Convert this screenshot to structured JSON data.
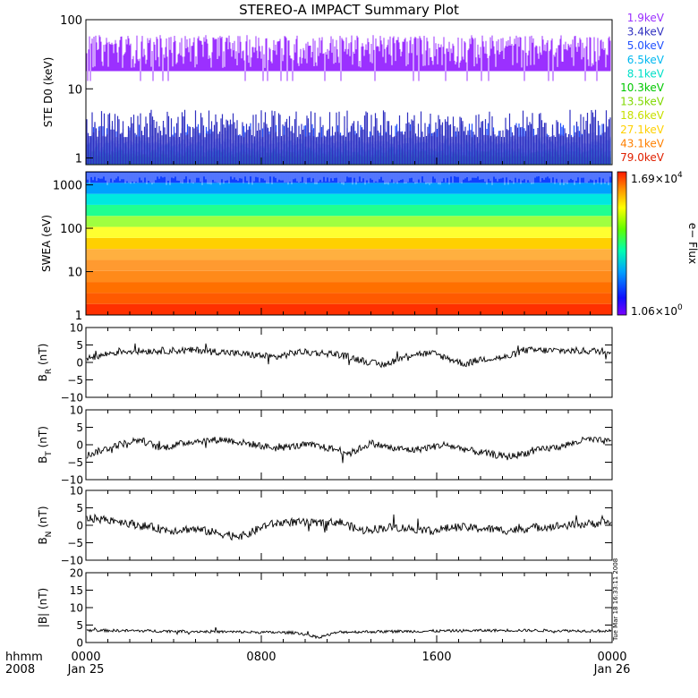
{
  "chart_data": [
    {
      "type": "line",
      "title": "STEREO-A IMPACT Summary Plot",
      "ylabel": "STE D0 (keV)",
      "yscale": "log",
      "ylim": [
        0.8,
        100
      ],
      "yticks": [
        "1",
        "10",
        "100"
      ],
      "series": [
        {
          "name": "1.9keV",
          "color": "#9b30ff",
          "level_range": [
            20,
            60
          ]
        },
        {
          "name": "3.4keV",
          "color": "#3030c0",
          "level_range": [
            2.0,
            5.0
          ]
        },
        {
          "name": "5.0keV",
          "color": "#2050ff",
          "level_range": [
            1.6,
            3.2
          ]
        },
        {
          "name": "6.5keV",
          "color": "#00b8f0",
          "level_range": [
            1.2,
            2.0
          ]
        },
        {
          "name": "8.1keV",
          "color": "#00e0c8",
          "level_range": [
            1.0,
            1.6
          ]
        },
        {
          "name": "10.3keV",
          "color": "#00c800",
          "level_range": [
            1.0,
            1.4
          ]
        },
        {
          "name": "13.5keV",
          "color": "#80d800",
          "level_range": [
            1.0,
            1.3
          ]
        },
        {
          "name": "18.6keV",
          "color": "#c8e000",
          "level_range": [
            1.0,
            1.2
          ]
        },
        {
          "name": "27.1keV",
          "color": "#ffd000",
          "level_range": [
            1.0,
            1.15
          ]
        },
        {
          "name": "43.1keV",
          "color": "#ff8000",
          "level_range": [
            1.0,
            1.1
          ]
        },
        {
          "name": "79.0keV",
          "color": "#e02000",
          "level_range": [
            1.0,
            1.05
          ]
        }
      ]
    },
    {
      "type": "heatmap",
      "ylabel": "SWEA (eV)",
      "yscale": "log",
      "ylim": [
        1,
        2000
      ],
      "yticks": [
        "1",
        "10",
        "100",
        "1000"
      ],
      "colorbar_label": "e− Flux",
      "colorbar_max_mantissa": "1.69×10",
      "colorbar_max_exp": "4",
      "colorbar_min_mantissa": "1.06×10",
      "colorbar_min_exp": "0"
    },
    {
      "type": "line",
      "ylabel_main": "B",
      "ylabel_sub": "R",
      "ylabel_unit": " (nT)",
      "ylim": [
        -10,
        10
      ],
      "yticks": [
        "10",
        "5",
        "0",
        "−5",
        "−10"
      ],
      "profile": [
        [
          0,
          1.0
        ],
        [
          0.06,
          3.2
        ],
        [
          0.22,
          3.5
        ],
        [
          0.36,
          1.5
        ],
        [
          0.4,
          3.0
        ],
        [
          0.47,
          2.5
        ],
        [
          0.5,
          1.5
        ],
        [
          0.56,
          -0.8
        ],
        [
          0.62,
          2.5
        ],
        [
          0.66,
          2.5
        ],
        [
          0.72,
          -0.5
        ],
        [
          0.75,
          1.0
        ],
        [
          0.8,
          1.5
        ],
        [
          0.83,
          3.5
        ],
        [
          1,
          3.2
        ]
      ]
    },
    {
      "type": "line",
      "ylabel_main": "B",
      "ylabel_sub": "T",
      "ylabel_unit": " (nT)",
      "ylim": [
        -10,
        10
      ],
      "yticks": [
        "10",
        "5",
        "0",
        "−5",
        "−10"
      ],
      "profile": [
        [
          0,
          -3.0
        ],
        [
          0.06,
          0.0
        ],
        [
          0.1,
          1.5
        ],
        [
          0.14,
          -1.0
        ],
        [
          0.2,
          1.0
        ],
        [
          0.26,
          1.5
        ],
        [
          0.3,
          0.5
        ],
        [
          0.36,
          -1.0
        ],
        [
          0.42,
          0.0
        ],
        [
          0.48,
          -1.5
        ],
        [
          0.5,
          -2.5
        ],
        [
          0.54,
          0.5
        ],
        [
          0.58,
          -1.0
        ],
        [
          0.62,
          -1.5
        ],
        [
          0.68,
          0.0
        ],
        [
          0.74,
          -2.0
        ],
        [
          0.8,
          -3.5
        ],
        [
          0.86,
          -1.5
        ],
        [
          0.9,
          -0.5
        ],
        [
          0.95,
          1.5
        ],
        [
          1,
          0.8
        ]
      ]
    },
    {
      "type": "line",
      "ylabel_main": "B",
      "ylabel_sub": "N",
      "ylabel_unit": " (nT)",
      "ylim": [
        -10,
        10
      ],
      "yticks": [
        "10",
        "5",
        "0",
        "−5",
        "−10"
      ],
      "profile": [
        [
          0,
          2.0
        ],
        [
          0.05,
          1.5
        ],
        [
          0.1,
          0.0
        ],
        [
          0.16,
          -1.5
        ],
        [
          0.2,
          -1.0
        ],
        [
          0.26,
          -2.5
        ],
        [
          0.3,
          -3.0
        ],
        [
          0.34,
          0.0
        ],
        [
          0.38,
          1.0
        ],
        [
          0.44,
          0.5
        ],
        [
          0.48,
          1.0
        ],
        [
          0.52,
          -1.5
        ],
        [
          0.58,
          -0.5
        ],
        [
          0.62,
          -1.0
        ],
        [
          0.66,
          -1.5
        ],
        [
          0.7,
          -0.5
        ],
        [
          0.76,
          -1.0
        ],
        [
          0.8,
          -1.5
        ],
        [
          0.86,
          -0.5
        ],
        [
          0.92,
          0.0
        ],
        [
          1,
          1.0
        ]
      ]
    },
    {
      "type": "line",
      "ylabel": "|B| (nT)",
      "ylim": [
        0,
        20
      ],
      "yticks": [
        "20",
        "15",
        "10",
        "5",
        "0"
      ],
      "side_text": "Tue Mar 18 16:33:11 2008",
      "profile": [
        [
          0,
          3.5
        ],
        [
          0.2,
          3.2
        ],
        [
          0.3,
          3.0
        ],
        [
          0.4,
          2.8
        ],
        [
          0.44,
          1.5
        ],
        [
          0.48,
          3.0
        ],
        [
          0.6,
          3.2
        ],
        [
          0.8,
          3.5
        ],
        [
          1,
          3.3
        ]
      ]
    }
  ],
  "xaxis": {
    "row1_label": "hhmm",
    "row2_label": "2008",
    "ticks": [
      {
        "frac": 0,
        "top": "0000",
        "bottom": "Jan 25"
      },
      {
        "frac": 0.3333,
        "top": "0800",
        "bottom": ""
      },
      {
        "frac": 0.6667,
        "top": "1600",
        "bottom": ""
      },
      {
        "frac": 1,
        "top": "0000",
        "bottom": "Jan 26"
      }
    ]
  }
}
